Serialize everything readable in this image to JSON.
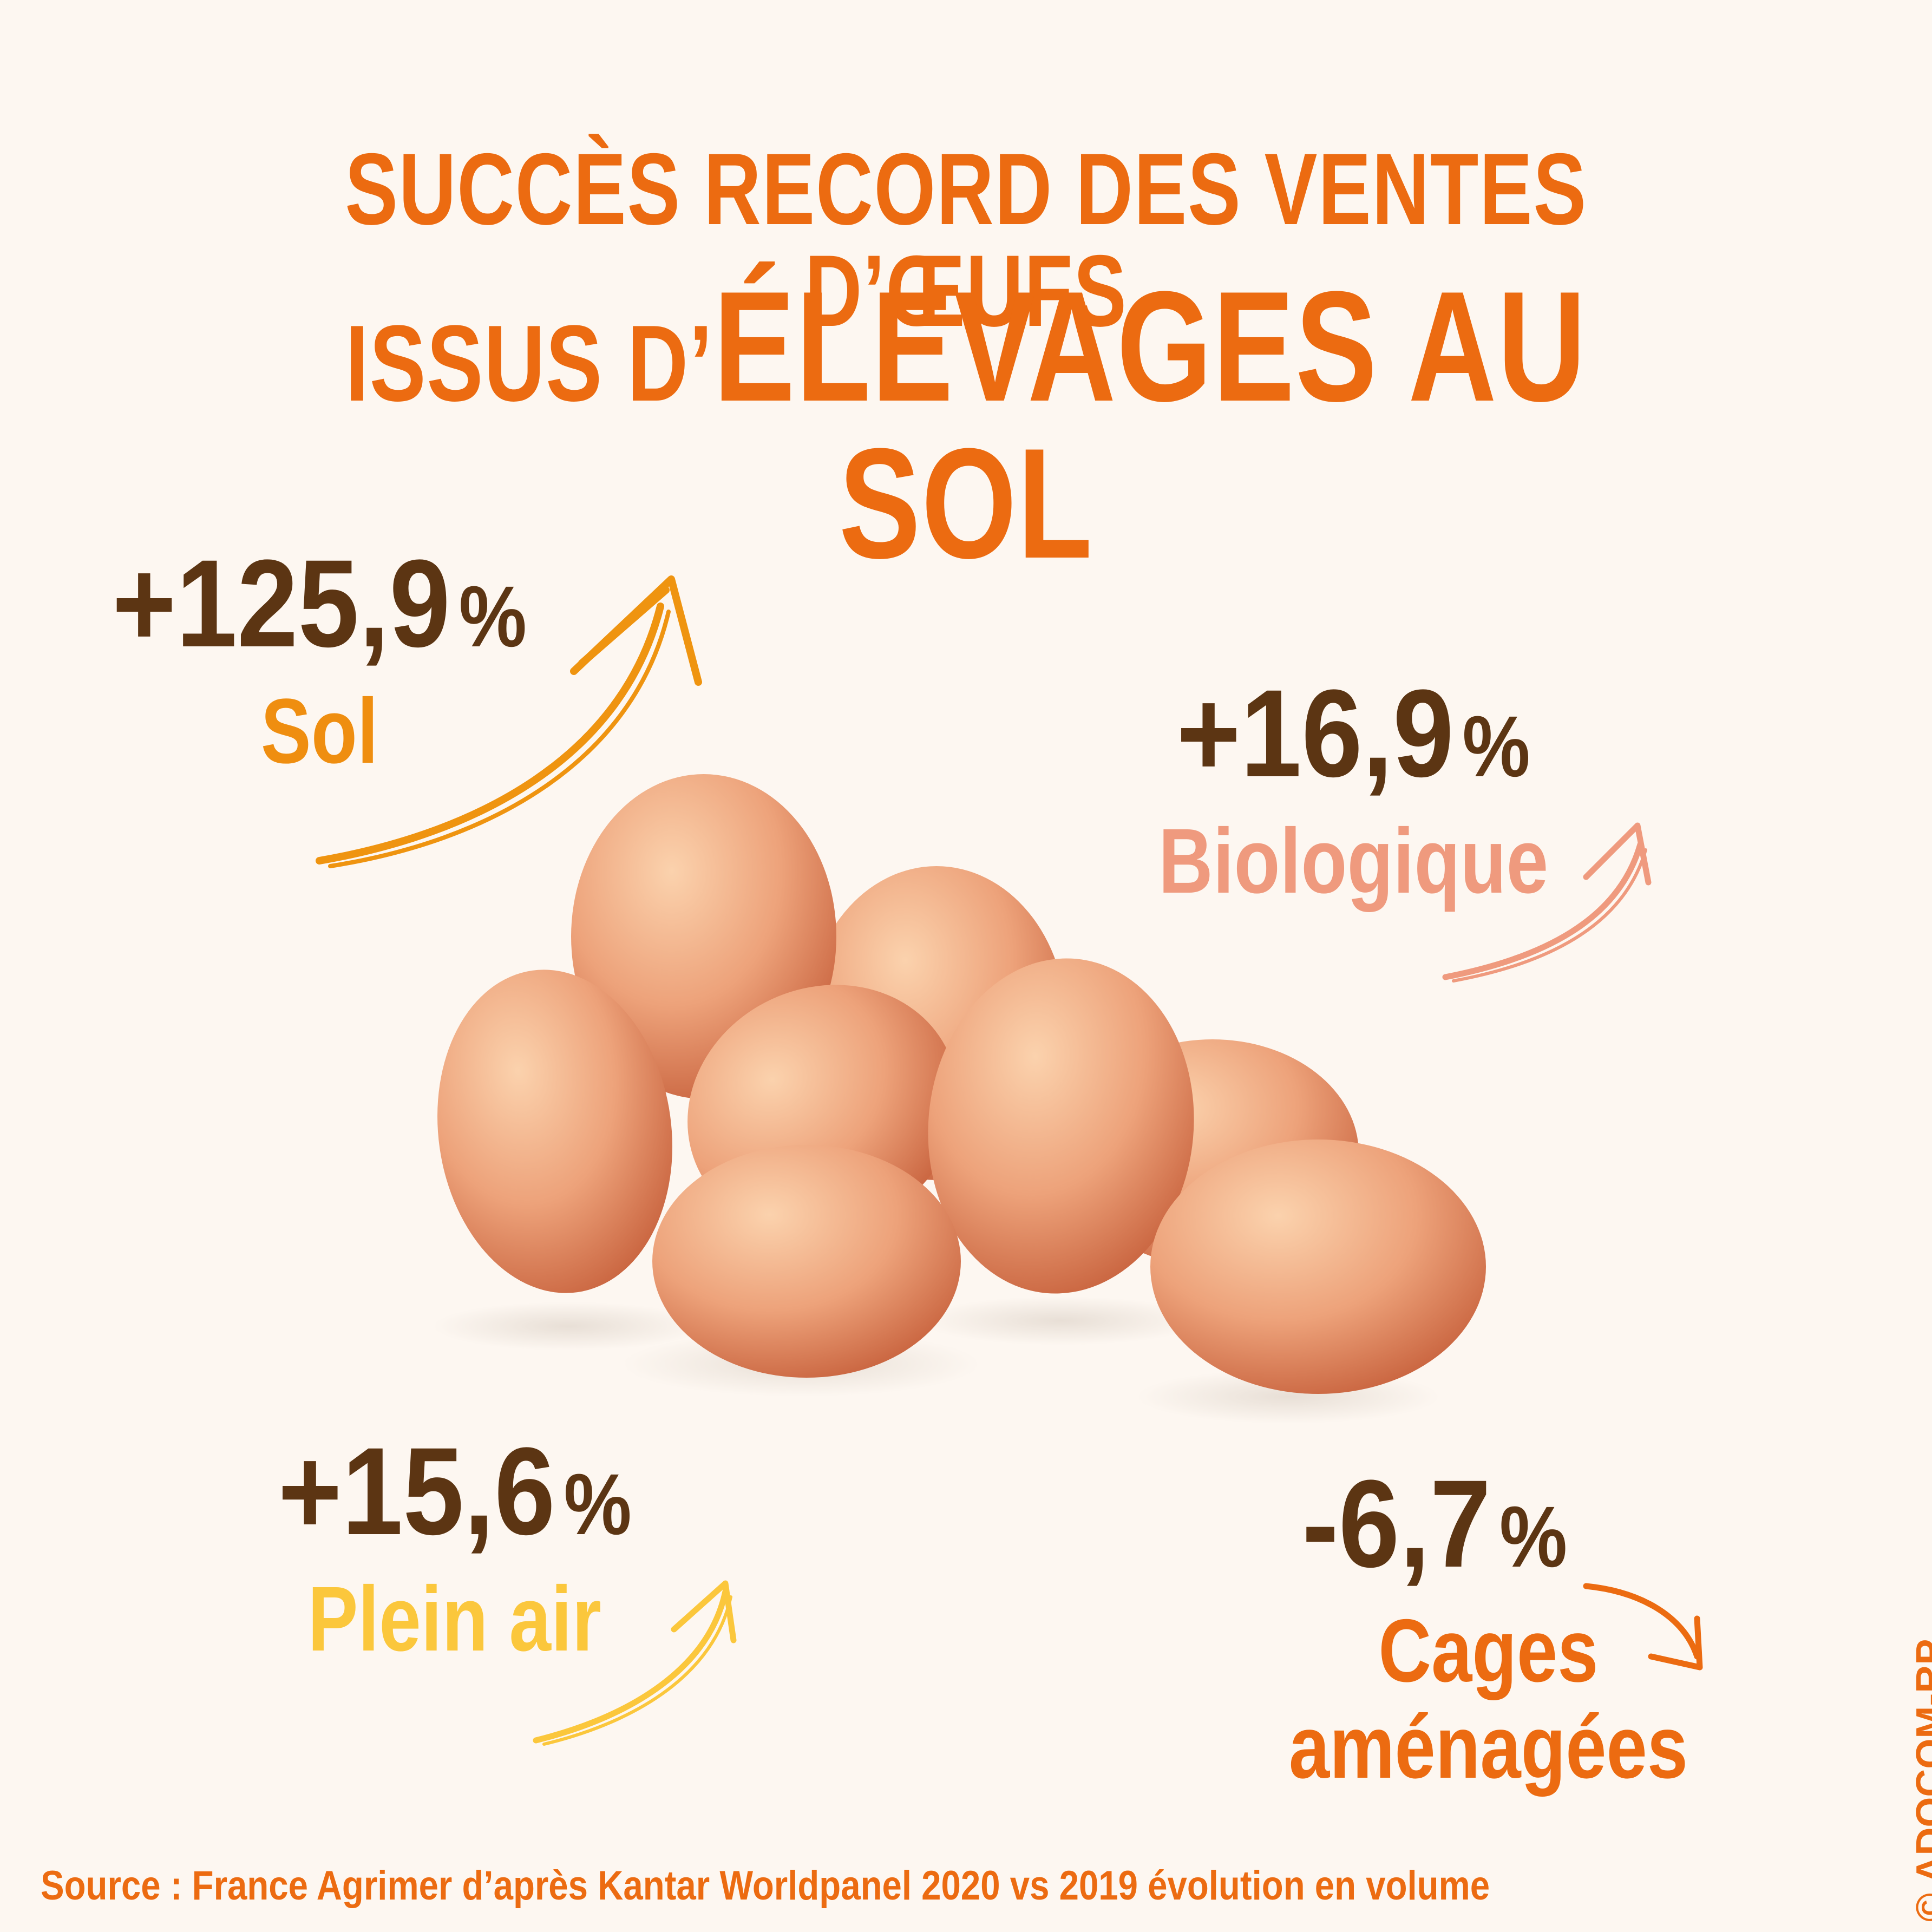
{
  "title": {
    "line1": "SUCCÈS RECORD DES VENTES D’ŒUFS",
    "line2_prefix": "ISSUS D’",
    "line2_emphasis": "ÉLEVAGES AU SOL"
  },
  "stats": {
    "sol": {
      "value": "+125,9",
      "unit": "%",
      "label": "Sol",
      "color": "#ef8e10",
      "trend": "up"
    },
    "biologique": {
      "value": "+16,9",
      "unit": "%",
      "label": "Biologique",
      "color": "#ef9a7e",
      "trend": "up"
    },
    "plein_air": {
      "value": "+15,6",
      "unit": "%",
      "label": "Plein air",
      "color": "#fbc73c",
      "trend": "up"
    },
    "cages": {
      "value": "-6,7",
      "unit": "%",
      "label_line1": "Cages",
      "label_line2": "aménagées",
      "color": "#ec6b11",
      "trend": "down"
    }
  },
  "illustration": {
    "name": "brown-eggs-pile",
    "count": 9
  },
  "source": "Source : France Agrimer d’après Kantar Worldpanel 2020 vs 2019 évolution en volume",
  "copyright": "© ADOCOM-RP",
  "colors": {
    "accent": "#ec6b11",
    "value_text": "#5c3513",
    "background": "#fdf7f1"
  }
}
